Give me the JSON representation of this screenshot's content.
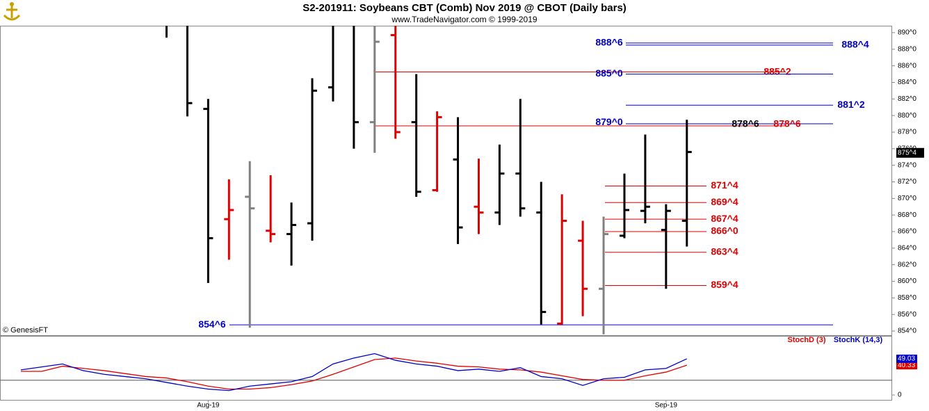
{
  "chart_data": {
    "type": "ohlc",
    "title": "S2-201911:  Soybeans CBT (Comb) Nov 2019 @ CBOT  (Daily bars)",
    "subtitle": "www.TradeNavigator.com © 1999-2019",
    "source": "© GenesisFT",
    "x_labels": [
      {
        "value": 9,
        "label": "Aug-19"
      },
      {
        "value": 31,
        "label": "Sep-19"
      }
    ],
    "ylim": [
      853.5,
      890.75
    ],
    "yticks": [
      {
        "value": 854,
        "label": "854^0"
      },
      {
        "value": 856,
        "label": "856^0"
      },
      {
        "value": 858,
        "label": "858^0"
      },
      {
        "value": 860,
        "label": "860^0"
      },
      {
        "value": 862,
        "label": "862^0"
      },
      {
        "value": 864,
        "label": "864^0"
      },
      {
        "value": 866,
        "label": "866^0"
      },
      {
        "value": 868,
        "label": "868^0"
      },
      {
        "value": 870,
        "label": "870^0"
      },
      {
        "value": 872,
        "label": "872^0"
      },
      {
        "value": 874,
        "label": "874^0"
      },
      {
        "value": 876,
        "label": "876^0"
      },
      {
        "value": 878,
        "label": "878^0"
      },
      {
        "value": 880,
        "label": "880^0"
      },
      {
        "value": 882,
        "label": "882^0"
      },
      {
        "value": 884,
        "label": "884^0"
      },
      {
        "value": 886,
        "label": "886^0"
      },
      {
        "value": 888,
        "label": "888^0"
      },
      {
        "value": 890,
        "label": "890^0"
      }
    ],
    "bars": {
      "open": [
        null,
        null,
        null,
        null,
        null,
        null,
        null,
        null,
        null,
        880.8,
        867.5,
        870.2,
        866.1,
        865.7,
        867,
        883.4,
        null,
        879.2,
        889.7,
        879.2,
        871,
        874.7,
        869,
        868.3,
        873,
        868.3,
        854.9,
        864.9,
        859.1,
        865.5,
        868.5,
        866.2,
        867.3
      ],
      "high": [
        null,
        null,
        null,
        null,
        null,
        null,
        null,
        892,
        892,
        882,
        872.3,
        874.5,
        872.8,
        869.5,
        884.5,
        891,
        891,
        891,
        891,
        885,
        880.5,
        879.8,
        874.8,
        876.5,
        882,
        872,
        870.5,
        867.3,
        867.8,
        873,
        877.7,
        869.3,
        879.5
      ],
      "low": [
        null,
        null,
        null,
        null,
        null,
        null,
        null,
        889.4,
        879.9,
        859.8,
        862.6,
        854.4,
        864.7,
        861.9,
        864.9,
        881.7,
        876,
        875.5,
        877.2,
        870.2,
        870.8,
        864.5,
        865.7,
        866.8,
        867.8,
        854.8,
        854.8,
        855.8,
        853.6,
        865.2,
        867,
        859.1,
        864.2
      ],
      "close": [
        null,
        null,
        null,
        null,
        null,
        null,
        null,
        null,
        881.5,
        865.2,
        868.6,
        868.8,
        865.7,
        866.8,
        883,
        null,
        879.2,
        888.9,
        878,
        870.8,
        879.8,
        866.5,
        868.3,
        873,
        868.8,
        856.3,
        867.3,
        859.1,
        865.7,
        868.6,
        869,
        868.5,
        875.6
      ],
      "colors": [
        null,
        null,
        null,
        null,
        null,
        null,
        null,
        "#000",
        "#000",
        "#000",
        "#e00000",
        "#808080",
        "#e00000",
        "#000",
        "#000",
        "#000",
        "#000",
        "#808080",
        "#e00000",
        "#000",
        "#e00000",
        "#000",
        "#e00000",
        "#000",
        "#000",
        "#000",
        "#e00000",
        "#e00000",
        "#808080",
        "#000",
        "#000",
        "#000",
        "#000"
      ]
    },
    "last_price": 875.5,
    "last_price_label": "875^4",
    "levels": [
      {
        "value": 888.75,
        "label": "888^6",
        "color": "#0000c8"
      },
      {
        "value": 888.5,
        "label": "888^4",
        "color": "#0000c8"
      },
      {
        "value": 885.25,
        "label": "885^2",
        "color": "#e00000"
      },
      {
        "value": 885,
        "label": "885^0",
        "color": "#0000c8"
      },
      {
        "value": 881.25,
        "label": "881^2",
        "color": "#0000c8"
      },
      {
        "value": 879,
        "label": "879^0",
        "color": "#0000c8"
      },
      {
        "value": 878.75,
        "label": "878^6",
        "color": "#e00000"
      },
      {
        "value": 878.75,
        "label": "878^6",
        "color": "#000000"
      },
      {
        "value": 871.5,
        "label": "871^4",
        "color": "#e00000"
      },
      {
        "value": 869.5,
        "label": "869^4",
        "color": "#e00000"
      },
      {
        "value": 867.5,
        "label": "867^4",
        "color": "#e00000"
      },
      {
        "value": 866,
        "label": "866^0",
        "color": "#e00000"
      },
      {
        "value": 863.5,
        "label": "863^4",
        "color": "#e00000"
      },
      {
        "value": 859.5,
        "label": "859^4",
        "color": "#e00000"
      },
      {
        "value": 854.75,
        "label": "854^6",
        "color": "#0000c8"
      }
    ],
    "stoch": {
      "ylim": [
        0,
        80
      ],
      "yticks": [
        0
      ],
      "hline": 20,
      "series": [
        {
          "name": "StochD (3)",
          "color": "#e00000",
          "values": [
            32,
            32,
            39,
            36,
            33,
            29,
            25,
            23,
            18,
            12,
            8,
            8,
            10,
            14,
            19,
            28,
            38,
            48,
            50,
            46,
            43,
            39,
            38,
            35,
            34,
            31,
            26,
            21,
            20,
            20,
            26,
            31,
            40.33
          ]
        },
        {
          "name": "StochK (14,3)",
          "color": "#0000c8",
          "values": [
            34,
            38,
            42,
            33,
            28,
            25,
            22,
            17,
            12,
            8,
            6,
            12,
            15,
            18,
            25,
            42,
            50,
            56,
            47,
            42,
            39,
            33,
            35,
            32,
            37,
            25,
            22,
            13,
            22,
            24,
            34,
            36,
            49.03
          ]
        }
      ]
    }
  }
}
